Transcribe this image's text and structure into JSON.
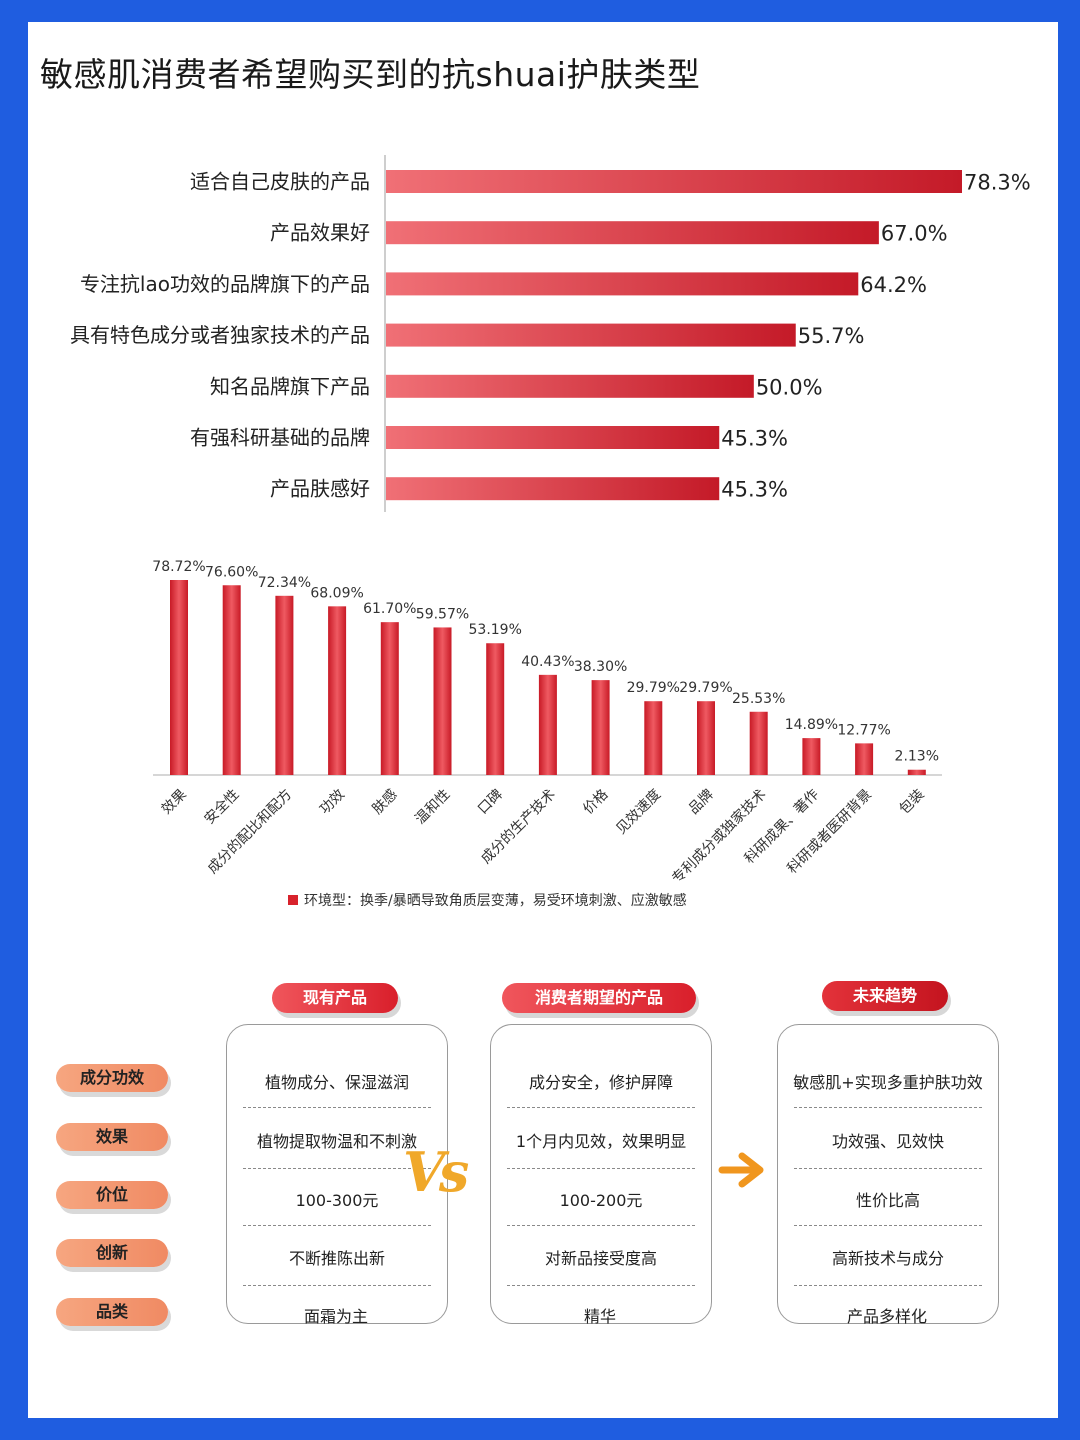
{
  "title": "敏感肌消费者希望购买到的抗shuai护肤类型",
  "chart_data": [
    {
      "type": "bar",
      "orientation": "horizontal",
      "categories": [
        "适合自己皮肤的产品",
        "产品效果好",
        "专注抗lao功效的品牌旗下的产品",
        "具有特色成分或者独家技术的产品",
        "知名品牌旗下产品",
        "有强科研基础的品牌",
        "产品肤感好"
      ],
      "values": [
        78.3,
        67.0,
        64.2,
        55.7,
        50.0,
        45.3,
        45.3
      ],
      "value_labels": [
        "78.3%",
        "67.0%",
        "64.2%",
        "55.7%",
        "50.0%",
        "45.3%",
        "45.3%"
      ],
      "xlim": [
        0,
        78.3
      ],
      "color": "#d8222c"
    },
    {
      "type": "bar",
      "orientation": "vertical",
      "categories": [
        "效果",
        "安全性",
        "成分的配比和配方",
        "功效",
        "肤感",
        "温和性",
        "口碑",
        "成分的生产技术",
        "价格",
        "见效速度",
        "品牌",
        "专利成分或独家技术",
        "科研成果、著作",
        "科研或者医研背景",
        "包装"
      ],
      "values": [
        78.72,
        76.6,
        72.34,
        68.09,
        61.7,
        59.57,
        53.19,
        40.43,
        38.3,
        29.79,
        29.79,
        25.53,
        14.89,
        12.77,
        2.13
      ],
      "value_labels": [
        "78.72%",
        "76.60%",
        "72.34%",
        "68.09%",
        "61.70%",
        "59.57%",
        "53.19%",
        "40.43%",
        "38.30%",
        "29.79%",
        "29.79%",
        "25.53%",
        "14.89%",
        "12.77%",
        "2.13%"
      ],
      "ylim": [
        0,
        78.72
      ],
      "legend": "环境型：换季/暴晒导致角质层变薄，易受环境刺激、应激敏感",
      "color": "#d8222c"
    }
  ],
  "comparison": {
    "headers": [
      "现有产品",
      "消费者期望的产品",
      "未来趋势"
    ],
    "row_labels": [
      "成分功效",
      "效果",
      "价位",
      "创新",
      "品类"
    ],
    "existing": [
      "植物成分、保湿滋润",
      "植物提取物温和不刺激",
      "100-300元",
      "不断推陈出新",
      "面霜为主"
    ],
    "expected": [
      "成分安全，修护屏障",
      "1个月内见效，效果明显",
      "100-200元",
      "对新品接受度高",
      "精华"
    ],
    "future": [
      "敏感肌+实现多重护肤功效",
      "功效强、见效快",
      "性价比高",
      "高新技术与成分",
      "产品多样化"
    ],
    "vs_label": "Vs",
    "colors": {
      "head_red": "#e3323a",
      "side_orange": "#f39a72",
      "vs": "#f0a82a",
      "arrow": "#f0961e"
    }
  }
}
